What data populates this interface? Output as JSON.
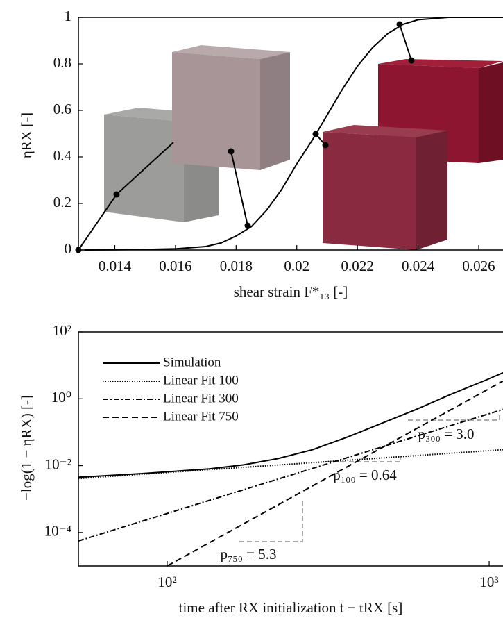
{
  "chart_data": [
    {
      "type": "line",
      "xlabel": "shear strain F*₁₃ [-]",
      "ylabel": "ηRX [-]",
      "x": [
        0.013,
        0.014,
        0.015,
        0.016,
        0.017,
        0.0175,
        0.018,
        0.0185,
        0.019,
        0.0195,
        0.02,
        0.0205,
        0.021,
        0.0215,
        0.022,
        0.0225,
        0.023,
        0.0235,
        0.024,
        0.0245,
        0.025,
        0.026,
        0.0268
      ],
      "values": [
        0,
        0.001,
        0.002,
        0.005,
        0.015,
        0.03,
        0.06,
        0.1,
        0.17,
        0.26,
        0.37,
        0.47,
        0.58,
        0.69,
        0.79,
        0.87,
        0.93,
        0.97,
        0.99,
        0.995,
        1,
        1,
        1
      ],
      "color": "#000000",
      "xlim": [
        0.0128,
        0.0268
      ],
      "ylim": [
        0,
        1
      ],
      "xticks": [
        0.014,
        0.016,
        0.018,
        0.02,
        0.022,
        0.024,
        0.026
      ],
      "yticks": [
        0,
        0.2,
        0.4,
        0.6,
        0.8,
        1
      ]
    },
    {
      "type": "line",
      "xlabel": "time after RX initialization t − tRX [s]",
      "ylabel": "−log(1 − ηRX) [-]",
      "xscale": "log",
      "yscale": "log",
      "xlim": [
        53,
        1104
      ],
      "ylim": [
        1e-05,
        100
      ],
      "xticks": [
        {
          "value": 100,
          "label": "10²"
        },
        {
          "value": 1000,
          "label": "10³"
        }
      ],
      "yticks": [
        {
          "value": 0.0001,
          "label": "10⁻⁴"
        },
        {
          "value": 0.01,
          "label": "10⁻²"
        },
        {
          "value": 1,
          "label": "10⁰"
        },
        {
          "value": 100,
          "label": "10²"
        }
      ],
      "legend": "upper left",
      "series": [
        {
          "name": "Simulation",
          "color": "#000000",
          "dash": "solid",
          "x": [
            53,
            82,
            135,
            173,
            221,
            283,
            362,
            464,
            594,
            762,
            975,
            1104
          ],
          "values": [
            0.0045,
            0.0057,
            0.008,
            0.0106,
            0.0163,
            0.03,
            0.071,
            0.185,
            0.48,
            1.37,
            3.6,
            6.0
          ]
        },
        {
          "name": "Linear Fit 100",
          "color": "#000000",
          "dash": "dotted",
          "x": [
            53,
            1104
          ],
          "values": [
            0.0041,
            0.03
          ]
        },
        {
          "name": "Linear Fit 300",
          "color": "#000000",
          "dash": "dashdot",
          "x": [
            53,
            1104
          ],
          "values": [
            5.6e-05,
            0.48
          ]
        },
        {
          "name": "Linear Fit 750",
          "color": "#000000",
          "dash": "dashed",
          "x": [
            100,
            1104
          ],
          "values": [
            1e-05,
            3.4
          ]
        }
      ],
      "annotations": [
        "p₃₀₀ = 3.0",
        "p₁₀₀ = 0.64",
        "p₇₅₀ = 5.3"
      ]
    }
  ]
}
